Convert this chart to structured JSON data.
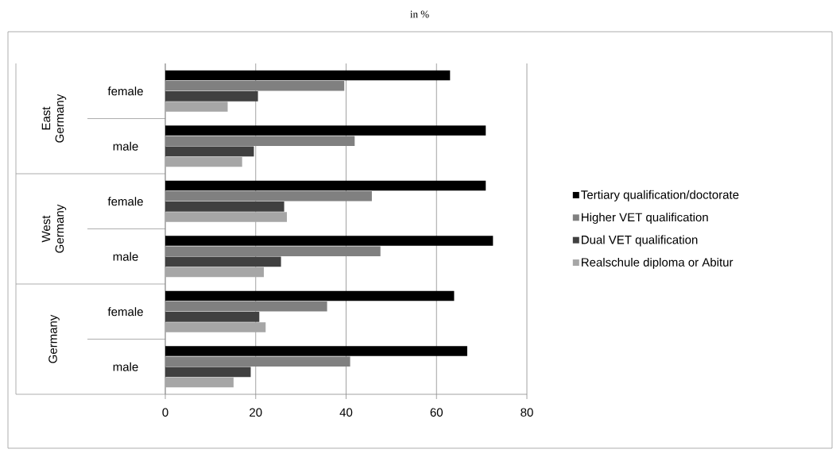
{
  "chart_data": {
    "type": "bar",
    "orientation": "horizontal",
    "title": "in %",
    "categories": [
      "female",
      "male",
      "female",
      "male",
      "female",
      "male"
    ],
    "annotations": [
      "East Germany",
      "West Germany",
      "Germany"
    ],
    "series": [
      {
        "name": "Tertiary qualification/doctorate",
        "color": "#000000",
        "values": [
          63.0,
          70.9,
          70.9,
          72.5,
          63.9,
          66.8
        ]
      },
      {
        "name": "Higher VET qualification",
        "color": "#808080",
        "values": [
          39.6,
          41.9,
          45.7,
          47.6,
          35.8,
          40.9
        ]
      },
      {
        "name": "Dual VET qualification",
        "color": "#404040",
        "values": [
          20.5,
          19.6,
          26.3,
          25.6,
          20.8,
          18.9
        ]
      },
      {
        "name": "Realschule diploma or Abitur",
        "color": "#a6a6a6",
        "values": [
          13.8,
          17.0,
          26.9,
          21.8,
          22.2,
          15.1
        ]
      }
    ],
    "xlim": [
      0,
      80
    ],
    "xticks": [
      0,
      20,
      40,
      60,
      80
    ],
    "grid": "x",
    "legend": "right"
  }
}
